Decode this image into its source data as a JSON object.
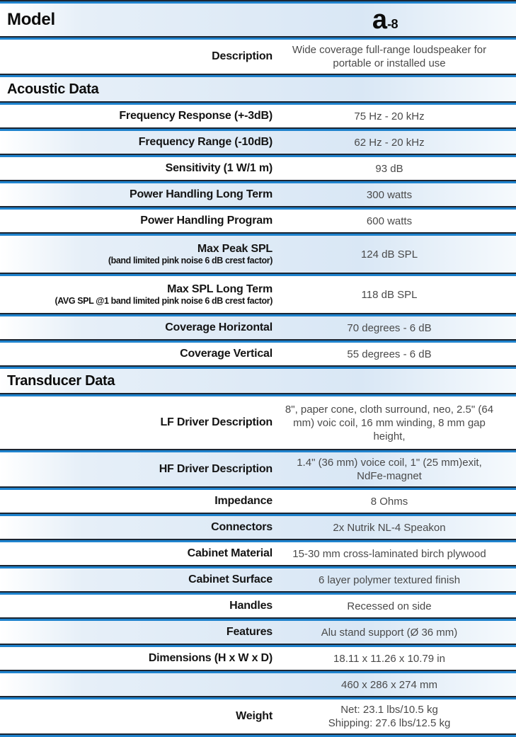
{
  "document_title": "Loudspeaker specification sheet",
  "colors": {
    "divider_dark": "#1c2531",
    "divider_blue": "#1f83ce",
    "band_blue": "#d9e7f5",
    "label_text": "#141414",
    "value_text": "#4a4a4a"
  },
  "rows": [
    {
      "type": "model",
      "label": "Model",
      "logo_main": "a",
      "logo_suffix": "-8",
      "shaded": true
    },
    {
      "type": "spec",
      "label": "Description",
      "value": "Wide coverage full-range loudspeaker for portable or installed use",
      "shaded": false,
      "size": "2l"
    },
    {
      "type": "section",
      "label": "Acoustic Data",
      "shaded": true
    },
    {
      "type": "spec",
      "label": "Frequency Response  (+-3dB)",
      "value": "75 Hz - 20 kHz",
      "shaded": false
    },
    {
      "type": "spec",
      "label": "Frequency Range (-10dB)",
      "value": "62 Hz - 20 kHz",
      "shaded": true
    },
    {
      "type": "spec",
      "label": "Sensitivity (1 W/1 m)",
      "value": "93 dB",
      "shaded": false
    },
    {
      "type": "spec",
      "label": "Power Handling Long Term",
      "value": "300 watts",
      "shaded": true
    },
    {
      "type": "spec",
      "label": "Power Handling Program",
      "value": "600 watts",
      "shaded": false
    },
    {
      "type": "spec",
      "label": "Max Peak SPL",
      "note": "(band limited pink noise 6 dB crest factor)",
      "value": "124 dB SPL",
      "shaded": true
    },
    {
      "type": "spec",
      "label": "Max SPL Long Term",
      "note": "(AVG SPL @1 band limited pink noise 6 dB crest factor)",
      "value": "118 dB SPL",
      "shaded": false
    },
    {
      "type": "spec",
      "label": "Coverage Horizontal",
      "value": "70 degrees - 6 dB",
      "shaded": true
    },
    {
      "type": "spec",
      "label": "Coverage Vertical",
      "value": "55 degrees - 6 dB",
      "shaded": false
    },
    {
      "type": "section",
      "label": "Transducer Data",
      "shaded": true
    },
    {
      "type": "spec",
      "label": "LF Driver Description",
      "value": "8\", paper cone, cloth surround, neo, 2.5\"  (64 mm) voic coil, 16 mm winding, 8 mm gap height,",
      "shaded": false,
      "size": "lf"
    },
    {
      "type": "spec",
      "label": "HF Driver Description",
      "value": "1.4\" (36 mm) voice coil, 1\" (25 mm)exit, NdFe-magnet",
      "shaded": true,
      "size": "2l"
    },
    {
      "type": "spec",
      "label": "Impedance",
      "value": "8 Ohms",
      "shaded": false
    },
    {
      "type": "spec",
      "label": "Connectors",
      "value": "2x Nutrik NL-4 Speakon",
      "shaded": true
    },
    {
      "type": "spec",
      "label": "Cabinet Material",
      "value": "15-30 mm cross-laminated birch plywood",
      "shaded": false
    },
    {
      "type": "spec",
      "label": "Cabinet Surface",
      "value": "6 layer polymer textured finish",
      "shaded": true
    },
    {
      "type": "spec",
      "label": "Handles",
      "value": "Recessed on side",
      "shaded": false
    },
    {
      "type": "spec",
      "label": "Features",
      "value": "Alu stand support (Ø 36 mm)",
      "shaded": true
    },
    {
      "type": "spec",
      "label": "Dimensions (H x W x D)",
      "value": "18.11 x 11.26 x 10.79 in",
      "shaded": false
    },
    {
      "type": "spec",
      "label": "",
      "value": "460 x 286 x 274 mm",
      "shaded": true
    },
    {
      "type": "spec",
      "label": "Weight",
      "value_lines": [
        "Net: 23.1 lbs/10.5 kg",
        "Shipping: 27.6 lbs/12.5 kg"
      ],
      "shaded": false,
      "size": "2l"
    }
  ]
}
